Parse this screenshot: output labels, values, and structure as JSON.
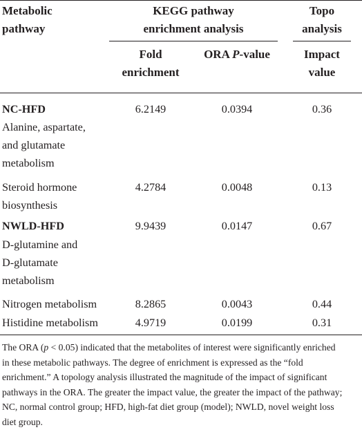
{
  "headers": {
    "col1_line1": "Metabolic",
    "col1_line2": "pathway",
    "group1_line1": "KEGG pathway",
    "group1_line2": "enrichment analysis",
    "group2_line1": "Topo",
    "group2_line2": "analysis",
    "fold_line1": "Fold",
    "fold_line2": "enrichment",
    "ora_prefix": "ORA ",
    "ora_italic": "P",
    "ora_suffix": "-value",
    "impact_line1": "Impact",
    "impact_line2": "value"
  },
  "rows": {
    "nc_hfd": {
      "label": "NC-HFD",
      "fold": "6.2149",
      "ora": "0.0394",
      "impact": "0.36"
    },
    "ala_1": "Alanine, aspartate,",
    "ala_2": "and glutamate",
    "ala_3": "metabolism",
    "steroid": {
      "label_1": "Steroid hormone",
      "label_2": "biosynthesis",
      "fold": "4.2784",
      "ora": "0.0048",
      "impact": "0.13"
    },
    "nwld_hfd": {
      "label": "NWLD-HFD",
      "fold": "9.9439",
      "ora": "0.0147",
      "impact": "0.67"
    },
    "dglu_1": "D-glutamine and",
    "dglu_2": "D-glutamate",
    "dglu_3": "metabolism",
    "nitrogen": {
      "label": "Nitrogen metabolism",
      "fold": "8.2865",
      "ora": "0.0043",
      "impact": "0.44"
    },
    "histidine": {
      "label": "Histidine metabolism",
      "fold": "4.9719",
      "ora": "0.0199",
      "impact": "0.31"
    }
  },
  "footnote": {
    "l1_a": "The ORA (",
    "l1_p": "p",
    "l1_b": " < 0.05) indicated that the metabolites of interest were significantly enriched",
    "l2": "in these metabolic pathways. The degree of enrichment is expressed as the “fold",
    "l3": "enrichment.” A topology analysis illustrated the magnitude of the impact of significant",
    "l4": "pathways in the ORA. The greater the impact value, the greater the impact of the pathway;",
    "l5": "NC, normal control group; HFD, high-fat diet group (model); NWLD, novel weight loss",
    "l6": "diet group."
  }
}
